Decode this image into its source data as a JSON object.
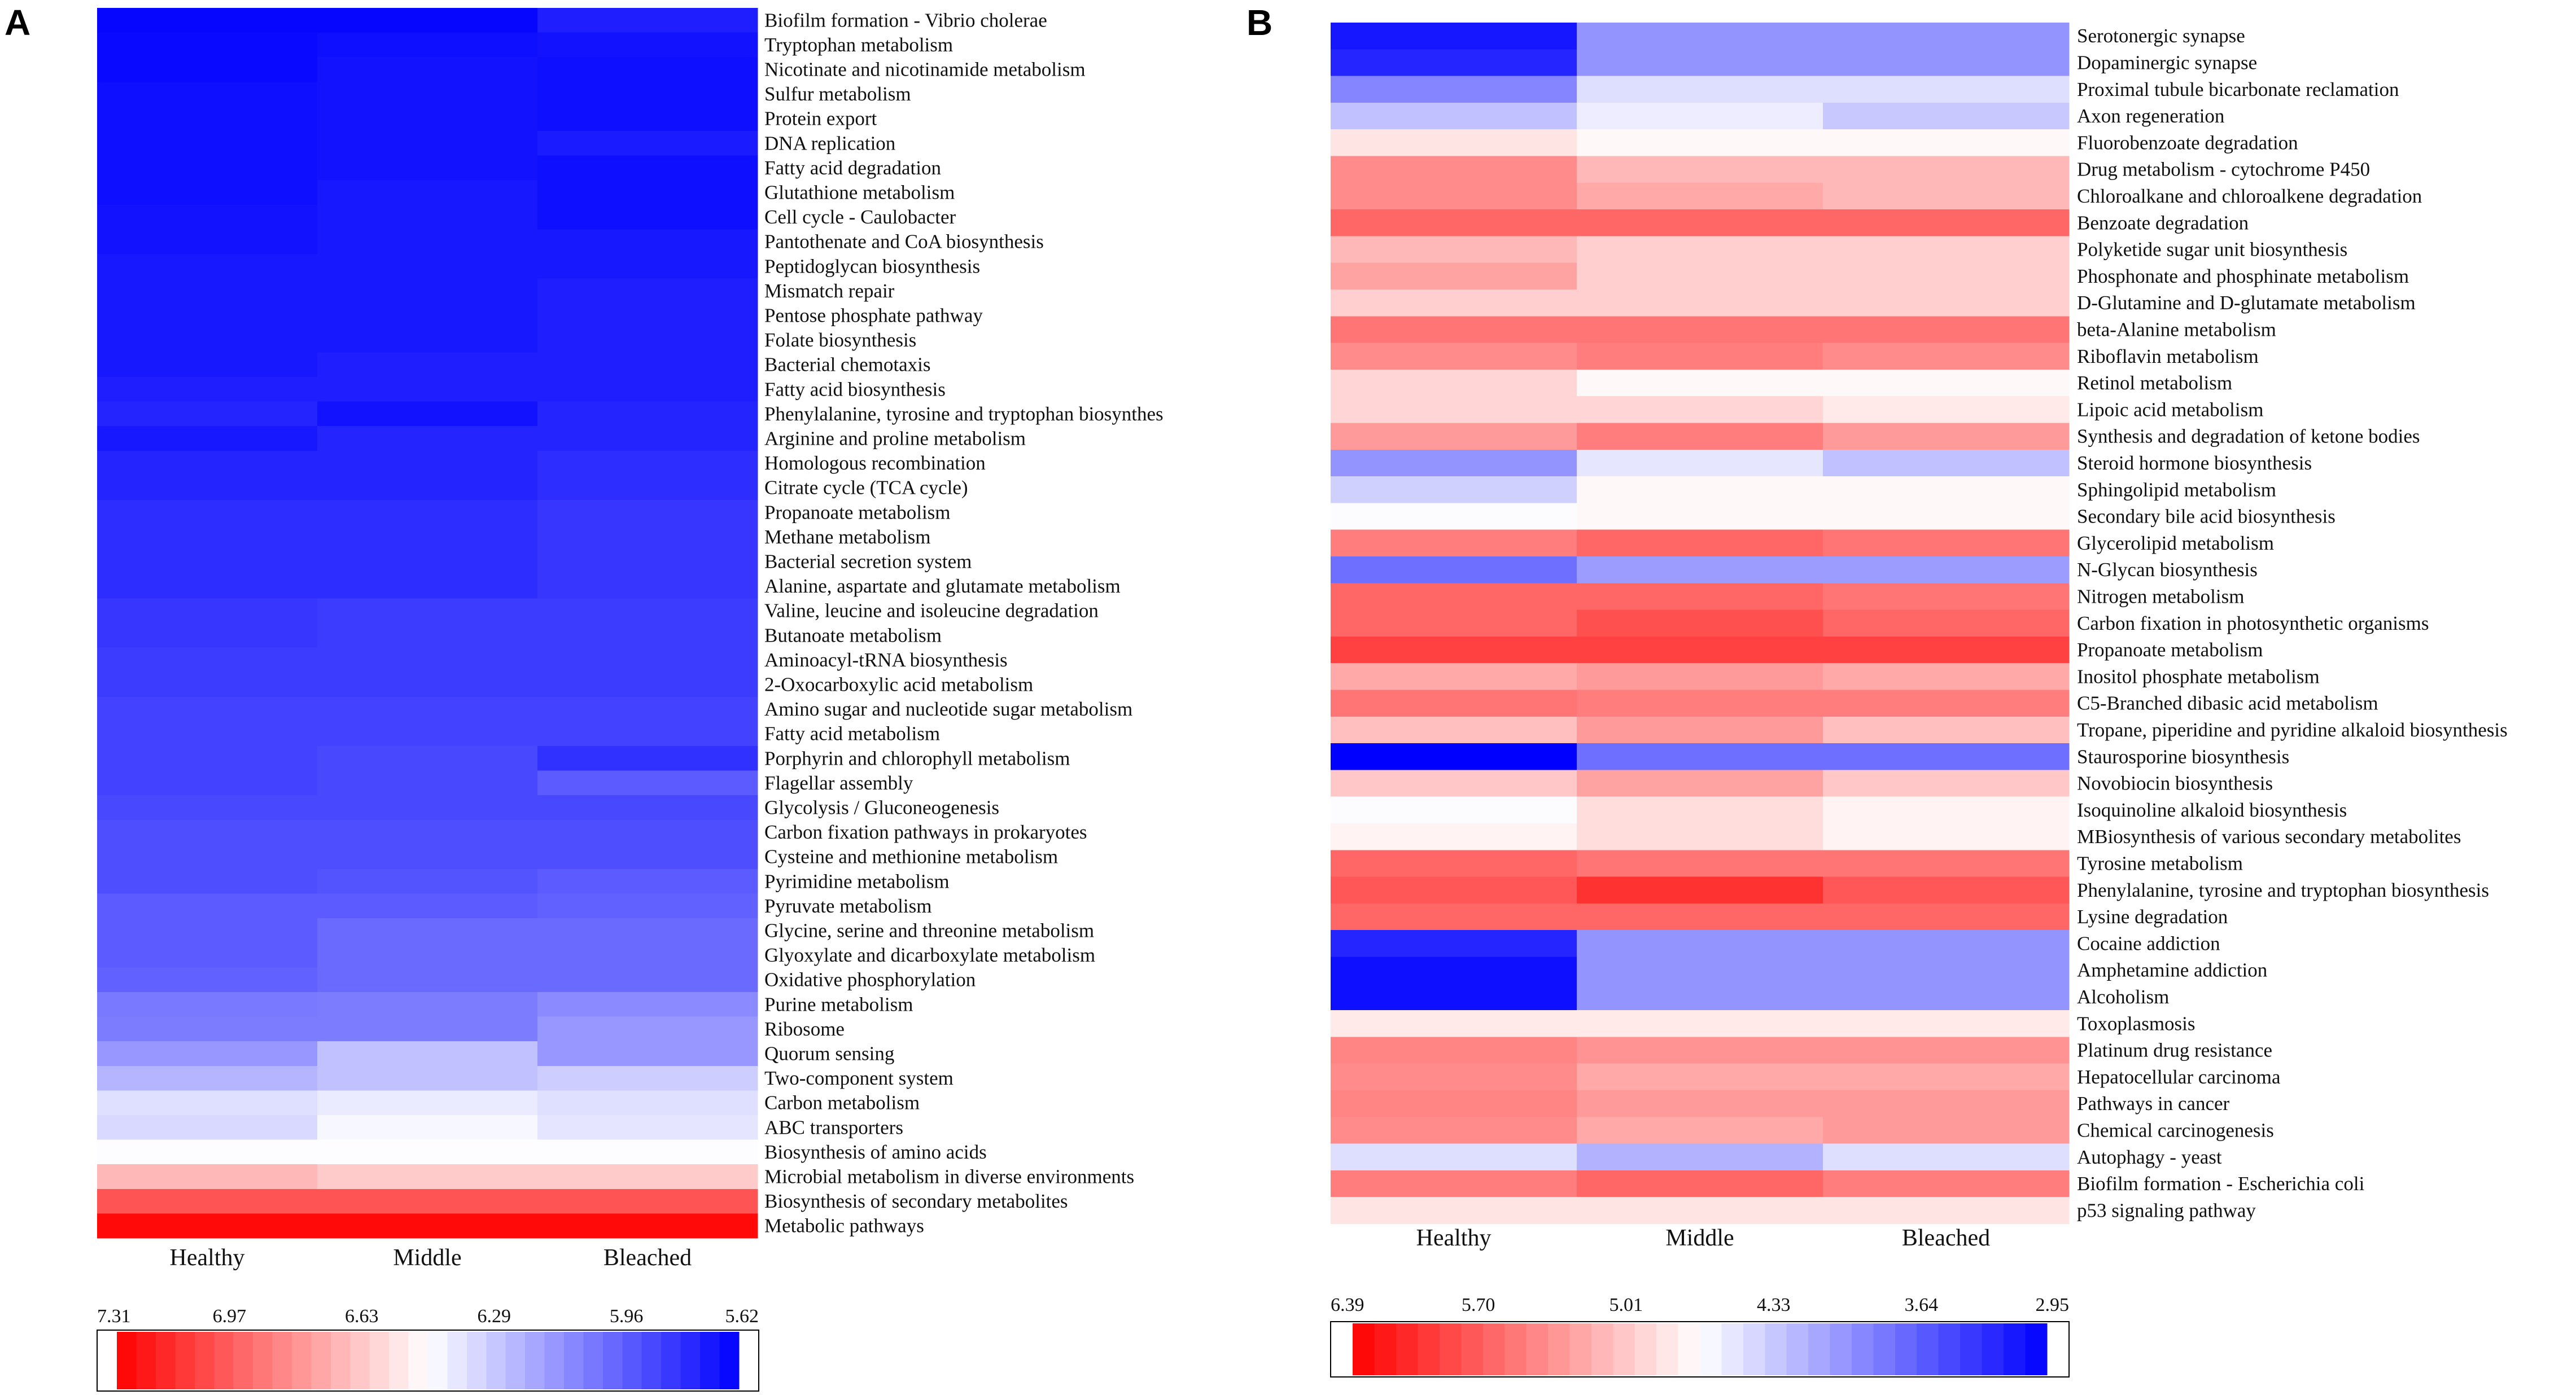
{
  "chart_data": [
    {
      "type": "heatmap",
      "panel": "A",
      "columns": [
        "Healthy",
        "Middle",
        "Bleached"
      ],
      "rows": [
        "Biofilm formation - Vibrio cholerae",
        "Tryptophan metabolism",
        "Nicotinate and nicotinamide metabolism",
        "Sulfur metabolism",
        "Protein export",
        "DNA replication",
        "Fatty acid degradation",
        "Glutathione metabolism",
        "Cell cycle - Caulobacter",
        "Pantothenate and CoA biosynthesis",
        "Peptidoglycan biosynthesis",
        "Mismatch repair",
        "Pentose phosphate pathway",
        "Folate biosynthesis",
        "Bacterial chemotaxis",
        "Fatty acid biosynthesis",
        "Phenylalanine, tyrosine and tryptophan biosynthes",
        "Arginine and proline metabolism",
        "Homologous recombination",
        "Citrate cycle (TCA cycle)",
        "Propanoate metabolism",
        "Methane metabolism",
        "Bacterial secretion system",
        "Alanine, aspartate and glutamate metabolism",
        "Valine, leucine and isoleucine degradation",
        "Butanoate metabolism",
        "Aminoacyl-tRNA biosynthesis",
        "2-Oxocarboxylic acid metabolism",
        "Amino sugar and nucleotide sugar metabolism",
        "Fatty acid metabolism",
        "Porphyrin and chlorophyll metabolism",
        "Flagellar assembly",
        "Glycolysis / Gluconeogenesis",
        "Carbon fixation pathways in prokaryotes",
        "Cysteine and methionine metabolism",
        "Pyrimidine metabolism",
        "Pyruvate metabolism",
        "Glycine, serine and threonine metabolism",
        "Glyoxylate and dicarboxylate metabolism",
        "Oxidative phosphorylation",
        "Purine metabolism",
        "Ribosome",
        "Quorum sensing",
        "Two-component system",
        "Carbon metabolism",
        "ABC transporters",
        "Biosynthesis of amino acids",
        "Microbial metabolism in diverse environments",
        "Biosynthesis of secondary metabolites",
        "Metabolic pathways"
      ],
      "values": [
        [
          5.64,
          5.64,
          5.72
        ],
        [
          5.65,
          5.67,
          5.68
        ],
        [
          5.65,
          5.68,
          5.67
        ],
        [
          5.67,
          5.68,
          5.67
        ],
        [
          5.67,
          5.68,
          5.67
        ],
        [
          5.67,
          5.68,
          5.71
        ],
        [
          5.67,
          5.68,
          5.67
        ],
        [
          5.67,
          5.7,
          5.67
        ],
        [
          5.68,
          5.7,
          5.67
        ],
        [
          5.68,
          5.7,
          5.7
        ],
        [
          5.7,
          5.7,
          5.7
        ],
        [
          5.7,
          5.7,
          5.72
        ],
        [
          5.7,
          5.7,
          5.72
        ],
        [
          5.7,
          5.7,
          5.72
        ],
        [
          5.7,
          5.72,
          5.72
        ],
        [
          5.72,
          5.72,
          5.72
        ],
        [
          5.74,
          5.68,
          5.74
        ],
        [
          5.7,
          5.74,
          5.74
        ],
        [
          5.74,
          5.74,
          5.77
        ],
        [
          5.74,
          5.74,
          5.77
        ],
        [
          5.77,
          5.77,
          5.8
        ],
        [
          5.77,
          5.77,
          5.8
        ],
        [
          5.77,
          5.77,
          5.8
        ],
        [
          5.77,
          5.77,
          5.8
        ],
        [
          5.8,
          5.82,
          5.82
        ],
        [
          5.8,
          5.82,
          5.82
        ],
        [
          5.82,
          5.82,
          5.82
        ],
        [
          5.82,
          5.82,
          5.82
        ],
        [
          5.84,
          5.84,
          5.84
        ],
        [
          5.84,
          5.84,
          5.84
        ],
        [
          5.84,
          5.86,
          5.78
        ],
        [
          5.84,
          5.86,
          5.92
        ],
        [
          5.86,
          5.86,
          5.86
        ],
        [
          5.88,
          5.88,
          5.88
        ],
        [
          5.88,
          5.88,
          5.88
        ],
        [
          5.88,
          5.9,
          5.92
        ],
        [
          5.92,
          5.92,
          5.94
        ],
        [
          5.92,
          5.97,
          5.97
        ],
        [
          5.92,
          5.97,
          5.97
        ],
        [
          5.94,
          5.97,
          5.97
        ],
        [
          6.02,
          6.03,
          6.08
        ],
        [
          6.03,
          6.03,
          6.12
        ],
        [
          6.12,
          6.26,
          6.12
        ],
        [
          6.22,
          6.26,
          6.3
        ],
        [
          6.36,
          6.4,
          6.36
        ],
        [
          6.34,
          6.44,
          6.38
        ],
        [
          6.46,
          6.46,
          6.46
        ],
        [
          6.7,
          6.64,
          6.64
        ],
        [
          7.03,
          7.03,
          7.03
        ],
        [
          7.28,
          7.28,
          7.28
        ]
      ],
      "colorbar": {
        "min": 5.62,
        "max": 7.31,
        "ticks": [
          "7.31",
          "6.97",
          "6.63",
          "6.29",
          "5.96",
          "5.62"
        ],
        "low_color": "#0000ff",
        "mid_color": "#ffffff",
        "high_color": "#ff0000"
      }
    },
    {
      "type": "heatmap",
      "panel": "B",
      "columns": [
        "Healthy",
        "Middle",
        "Bleached"
      ],
      "rows": [
        "Serotonergic synapse",
        "Dopaminergic synapse",
        "Proximal tubule bicarbonate reclamation",
        "Axon regeneration",
        "Fluorobenzoate degradation",
        "Drug metabolism - cytochrome P450",
        "Chloroalkane and chloroalkene degradation",
        "Benzoate degradation",
        "Polyketide sugar unit biosynthesis",
        "Phosphonate and phosphinate metabolism",
        "D-Glutamine and D-glutamate metabolism",
        "beta-Alanine metabolism",
        "Riboflavin metabolism",
        "Retinol metabolism",
        "Lipoic acid metabolism",
        "Synthesis and degradation of ketone bodies",
        "Steroid hormone biosynthesis",
        "Sphingolipid metabolism",
        "Secondary bile acid biosynthesis",
        "Glycerolipid metabolism",
        "N-Glycan biosynthesis",
        "Nitrogen metabolism",
        "Carbon fixation in photosynthetic organisms",
        "Propanoate metabolism",
        "Inositol phosphate metabolism",
        "C5-Branched dibasic acid metabolism",
        "Tropane, piperidine and pyridine alkaloid biosynthesis",
        "Staurosporine biosynthesis",
        "Novobiocin biosynthesis",
        "Isoquinoline alkaloid biosynthesis",
        "MBiosynthesis of various secondary metabolites",
        "Tyrosine metabolism",
        "Phenylalanine, tyrosine and tryptophan biosynthesis",
        "Lysine degradation",
        "Cocaine addiction",
        "Amphetamine addiction",
        "Alcoholism",
        "Toxoplasmosis",
        "Platinum drug resistance",
        "Hepatocellular carcinoma",
        "Pathways in cancer",
        "Chemical carcinogenesis",
        "Autophagy - yeast",
        "Biofilm formation - Escherichia coli",
        "p53 signaling pathway"
      ],
      "values": [
        [
          3.1,
          3.95,
          3.95
        ],
        [
          3.2,
          3.95,
          3.95
        ],
        [
          3.85,
          4.45,
          4.45
        ],
        [
          4.25,
          4.55,
          4.3
        ],
        [
          4.85,
          4.72,
          4.72
        ],
        [
          5.45,
          5.15,
          5.15
        ],
        [
          5.45,
          5.25,
          5.15
        ],
        [
          5.7,
          5.7,
          5.7
        ],
        [
          5.15,
          5.0,
          5.0
        ],
        [
          5.3,
          5.0,
          5.0
        ],
        [
          5.0,
          5.0,
          5.0
        ],
        [
          5.6,
          5.6,
          5.6
        ],
        [
          5.45,
          5.55,
          5.45
        ],
        [
          4.95,
          4.72,
          4.72
        ],
        [
          4.95,
          4.95,
          4.82
        ],
        [
          5.35,
          5.55,
          5.35
        ],
        [
          3.95,
          4.5,
          4.25
        ],
        [
          4.35,
          4.72,
          4.72
        ],
        [
          4.65,
          4.72,
          4.72
        ],
        [
          5.55,
          5.7,
          5.6
        ],
        [
          3.7,
          4.0,
          4.0
        ],
        [
          5.7,
          5.7,
          5.6
        ],
        [
          5.7,
          5.85,
          5.7
        ],
        [
          5.95,
          5.95,
          5.95
        ],
        [
          5.25,
          5.35,
          5.25
        ],
        [
          5.6,
          5.55,
          5.55
        ],
        [
          5.1,
          5.35,
          5.1
        ],
        [
          2.95,
          3.7,
          3.7
        ],
        [
          5.05,
          5.3,
          5.05
        ],
        [
          4.65,
          4.9,
          4.75
        ],
        [
          4.75,
          4.9,
          4.75
        ],
        [
          5.7,
          5.6,
          5.6
        ],
        [
          5.8,
          6.05,
          5.8
        ],
        [
          5.7,
          5.7,
          5.7
        ],
        [
          3.2,
          3.95,
          3.95
        ],
        [
          3.05,
          3.95,
          3.95
        ],
        [
          3.05,
          3.95,
          3.95
        ],
        [
          4.82,
          4.82,
          4.82
        ],
        [
          5.5,
          5.4,
          5.4
        ],
        [
          5.45,
          5.25,
          5.25
        ],
        [
          5.5,
          5.35,
          5.35
        ],
        [
          5.45,
          5.25,
          5.35
        ],
        [
          4.45,
          4.15,
          4.45
        ],
        [
          5.55,
          5.7,
          5.55
        ],
        [
          4.85,
          4.85,
          4.85
        ]
      ],
      "colorbar": {
        "min": 2.95,
        "max": 6.39,
        "ticks": [
          "6.39",
          "5.70",
          "5.01",
          "4.33",
          "3.64",
          "2.95"
        ],
        "low_color": "#0000ff",
        "mid_color": "#ffffff",
        "high_color": "#ff0000"
      }
    }
  ],
  "panels": {
    "a": {
      "letter": "A"
    },
    "b": {
      "letter": "B"
    }
  }
}
